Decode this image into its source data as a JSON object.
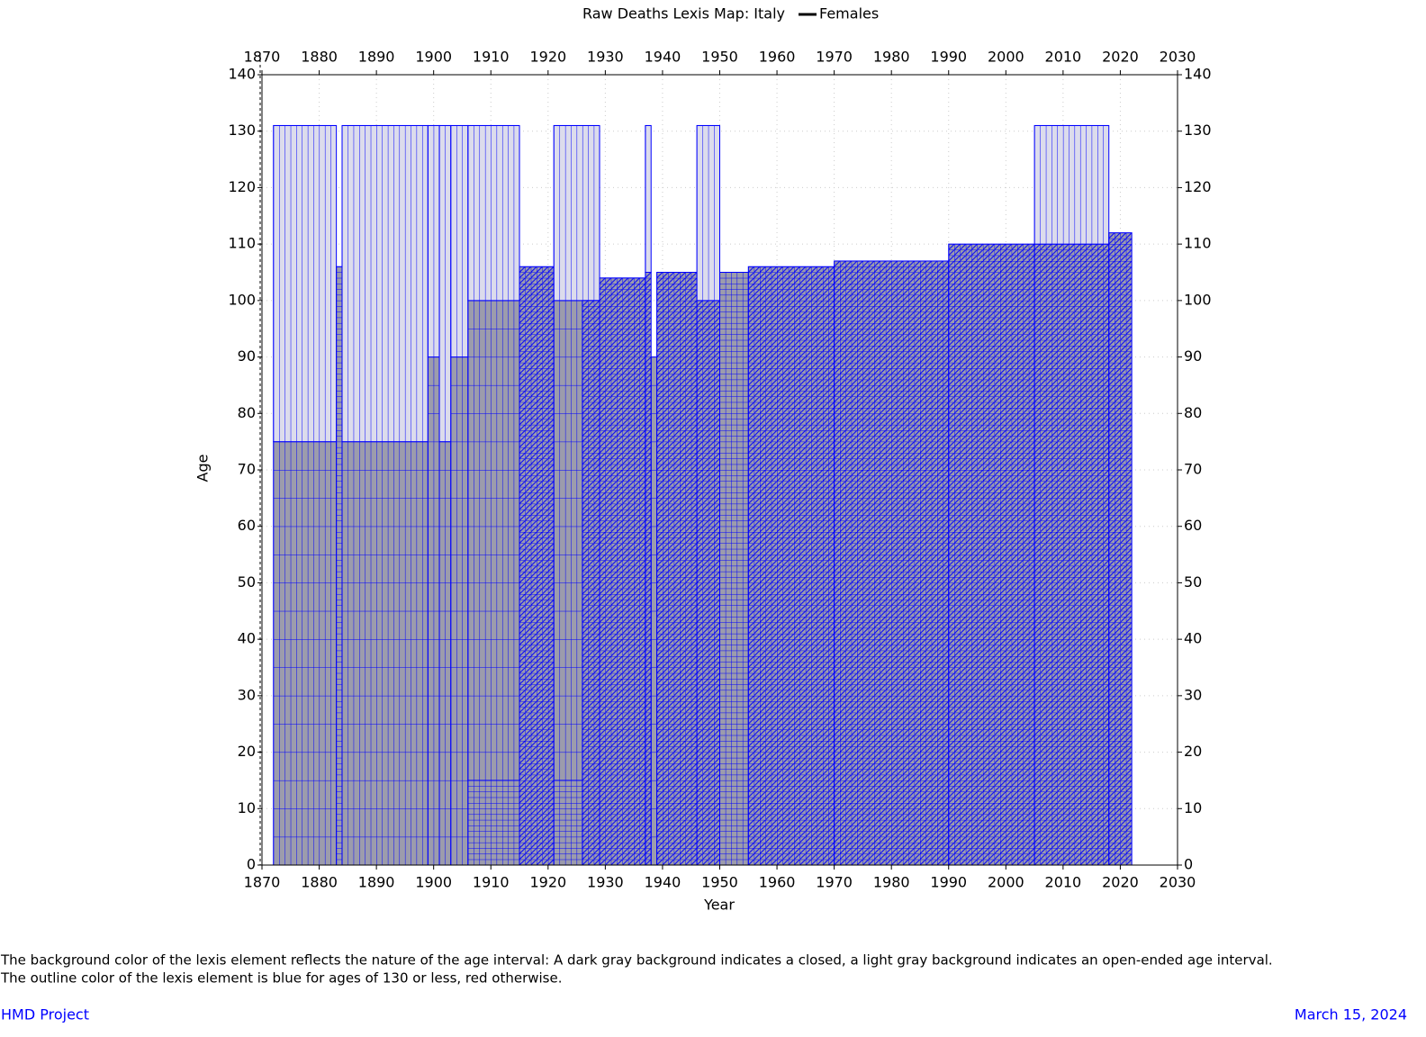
{
  "chart_data": {
    "type": "lexis",
    "title": "Raw Deaths Lexis Map: Italy",
    "legend": {
      "name": "Females",
      "color": "#000000"
    },
    "xlabel": "Year",
    "ylabel": "Age",
    "xlim": [
      1870,
      2030
    ],
    "ylim": [
      0,
      140
    ],
    "xticks": [
      1870,
      1880,
      1890,
      1900,
      1910,
      1920,
      1930,
      1940,
      1950,
      1960,
      1970,
      1980,
      1990,
      2000,
      2010,
      2020,
      2030
    ],
    "yticks": [
      0,
      10,
      20,
      30,
      40,
      50,
      60,
      70,
      80,
      90,
      100,
      110,
      120,
      130,
      140
    ],
    "grid": true,
    "closed_color": "#9c9cac",
    "open_color": "#dcdcec",
    "outline_color": "#0000ff",
    "blocks": [
      {
        "x0": 1872,
        "x1": 1883,
        "y0": 0,
        "y1": 75,
        "dx": 1,
        "dy": 5,
        "open_ended": false,
        "triangles": false
      },
      {
        "x0": 1872,
        "x1": 1883,
        "y0": 75,
        "y1": 131,
        "dx": 1,
        "dy": 56,
        "open_ended": true,
        "triangles": false
      },
      {
        "x0": 1883,
        "x1": 1884,
        "y0": 0,
        "y1": 106,
        "dx": 1,
        "dy": 1,
        "open_ended": false,
        "triangles": false
      },
      {
        "x0": 1884,
        "x1": 1899,
        "y0": 0,
        "y1": 75,
        "dx": 1,
        "dy": 5,
        "open_ended": false,
        "triangles": false
      },
      {
        "x0": 1884,
        "x1": 1899,
        "y0": 75,
        "y1": 131,
        "dx": 1,
        "dy": 56,
        "open_ended": true,
        "triangles": false
      },
      {
        "x0": 1899,
        "x1": 1901,
        "y0": 0,
        "y1": 90,
        "dx": 1,
        "dy": 5,
        "open_ended": false,
        "triangles": false
      },
      {
        "x0": 1899,
        "x1": 1901,
        "y0": 90,
        "y1": 131,
        "dx": 1,
        "dy": 41,
        "open_ended": true,
        "triangles": false
      },
      {
        "x0": 1901,
        "x1": 1903,
        "y0": 0,
        "y1": 75,
        "dx": 1,
        "dy": 5,
        "open_ended": false,
        "triangles": false
      },
      {
        "x0": 1901,
        "x1": 1903,
        "y0": 75,
        "y1": 131,
        "dx": 1,
        "dy": 56,
        "open_ended": true,
        "triangles": false
      },
      {
        "x0": 1903,
        "x1": 1906,
        "y0": 0,
        "y1": 90,
        "dx": 1,
        "dy": 5,
        "open_ended": false,
        "triangles": false
      },
      {
        "x0": 1903,
        "x1": 1906,
        "y0": 90,
        "y1": 131,
        "dx": 1,
        "dy": 41,
        "open_ended": true,
        "triangles": false
      },
      {
        "x0": 1906,
        "x1": 1915,
        "y0": 0,
        "y1": 15,
        "dx": 1,
        "dy": 1,
        "open_ended": false,
        "triangles": false
      },
      {
        "x0": 1906,
        "x1": 1915,
        "y0": 15,
        "y1": 100,
        "dx": 1,
        "dy": 5,
        "open_ended": false,
        "triangles": false
      },
      {
        "x0": 1906,
        "x1": 1915,
        "y0": 100,
        "y1": 131,
        "dx": 1,
        "dy": 31,
        "open_ended": true,
        "triangles": false
      },
      {
        "x0": 1915,
        "x1": 1921,
        "y0": 0,
        "y1": 106,
        "dx": 1,
        "dy": 1,
        "open_ended": false,
        "triangles": true
      },
      {
        "x0": 1921,
        "x1": 1926,
        "y0": 0,
        "y1": 15,
        "dx": 1,
        "dy": 1,
        "open_ended": false,
        "triangles": false
      },
      {
        "x0": 1921,
        "x1": 1926,
        "y0": 15,
        "y1": 100,
        "dx": 1,
        "dy": 5,
        "open_ended": false,
        "triangles": false
      },
      {
        "x0": 1921,
        "x1": 1929,
        "y0": 100,
        "y1": 131,
        "dx": 1,
        "dy": 31,
        "open_ended": true,
        "triangles": false
      },
      {
        "x0": 1926,
        "x1": 1929,
        "y0": 0,
        "y1": 100,
        "dx": 1,
        "dy": 1,
        "open_ended": false,
        "triangles": true
      },
      {
        "x0": 1929,
        "x1": 1937,
        "y0": 0,
        "y1": 104,
        "dx": 1,
        "dy": 1,
        "open_ended": false,
        "triangles": true
      },
      {
        "x0": 1937,
        "x1": 1938,
        "y0": 0,
        "y1": 105,
        "dx": 1,
        "dy": 1,
        "open_ended": false,
        "triangles": true
      },
      {
        "x0": 1937,
        "x1": 1938,
        "y0": 105,
        "y1": 131,
        "dx": 1,
        "dy": 26,
        "open_ended": true,
        "triangles": false
      },
      {
        "x0": 1938,
        "x1": 1939,
        "y0": 0,
        "y1": 90,
        "dx": 1,
        "dy": 5,
        "open_ended": false,
        "triangles": false
      },
      {
        "x0": 1939,
        "x1": 1946,
        "y0": 0,
        "y1": 105,
        "dx": 1,
        "dy": 1,
        "open_ended": false,
        "triangles": true
      },
      {
        "x0": 1946,
        "x1": 1950,
        "y0": 0,
        "y1": 100,
        "dx": 1,
        "dy": 1,
        "open_ended": false,
        "triangles": true
      },
      {
        "x0": 1946,
        "x1": 1950,
        "y0": 100,
        "y1": 131,
        "dx": 1,
        "dy": 31,
        "open_ended": true,
        "triangles": false
      },
      {
        "x0": 1950,
        "x1": 1955,
        "y0": 0,
        "y1": 105,
        "dx": 1,
        "dy": 1,
        "open_ended": false,
        "triangles": false
      },
      {
        "x0": 1955,
        "x1": 1970,
        "y0": 0,
        "y1": 106,
        "dx": 1,
        "dy": 1,
        "open_ended": false,
        "triangles": true
      },
      {
        "x0": 1970,
        "x1": 1990,
        "y0": 0,
        "y1": 107,
        "dx": 1,
        "dy": 1,
        "open_ended": false,
        "triangles": true
      },
      {
        "x0": 1990,
        "x1": 2005,
        "y0": 0,
        "y1": 110,
        "dx": 1,
        "dy": 1,
        "open_ended": false,
        "triangles": true
      },
      {
        "x0": 2005,
        "x1": 2018,
        "y0": 0,
        "y1": 110,
        "dx": 1,
        "dy": 1,
        "open_ended": false,
        "triangles": true
      },
      {
        "x0": 2005,
        "x1": 2018,
        "y0": 110,
        "y1": 131,
        "dx": 1,
        "dy": 21,
        "open_ended": true,
        "triangles": false
      },
      {
        "x0": 2018,
        "x1": 2022,
        "y0": 0,
        "y1": 112,
        "dx": 1,
        "dy": 1,
        "open_ended": false,
        "triangles": true
      }
    ]
  },
  "notes": [
    "The background color of the lexis element reflects the nature of the age interval: A dark gray background indicates a closed, a light gray background indicates an open-ended age interval.",
    "The outline color of the lexis element is blue for ages of 130 or less, red otherwise."
  ],
  "footer": {
    "left": "HMD Project",
    "right": "March 15, 2024"
  }
}
